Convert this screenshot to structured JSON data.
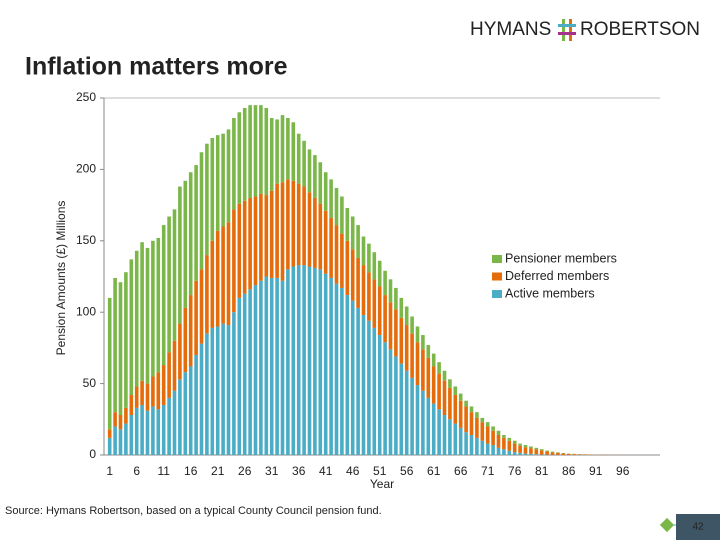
{
  "logo": {
    "left": "HYMANS",
    "right": "ROBERTSON"
  },
  "source": "Source: Hymans Robertson, based on a typical County Council pension fund.",
  "page_number": "42",
  "chart_data": {
    "type": "stacked_bar",
    "title": "Inflation matters more",
    "y_label": "Pension Amounts (£) Millions",
    "x_label": "Year",
    "categories": [
      "1",
      null,
      null,
      null,
      null,
      "6",
      null,
      null,
      null,
      null,
      "11",
      null,
      null,
      null,
      null,
      "16",
      null,
      null,
      null,
      null,
      "21",
      null,
      null,
      null,
      null,
      "26",
      null,
      null,
      null,
      null,
      "31",
      null,
      null,
      null,
      null,
      "36",
      null,
      null,
      null,
      null,
      "41",
      null,
      null,
      null,
      null,
      "46",
      null,
      null,
      null,
      null,
      "51",
      null,
      null,
      null,
      null,
      "56",
      null,
      null,
      null,
      null,
      "61",
      null,
      null,
      null,
      null,
      "66",
      null,
      null,
      null,
      null,
      "71",
      null,
      null,
      null,
      null,
      "76",
      null,
      null,
      null,
      null,
      "81",
      null,
      null,
      null,
      null,
      "86",
      null,
      null,
      null,
      null,
      "91",
      null,
      null,
      null,
      null,
      "96",
      null,
      null,
      null,
      null
    ],
    "series": [
      {
        "name": "Pensioner members",
        "color": "#7ab648",
        "values": [
          92,
          94,
          93,
          95,
          95,
          95,
          97,
          95,
          95,
          94,
          98,
          95,
          92,
          96,
          89,
          86,
          81,
          82,
          78,
          72,
          67,
          65,
          65,
          64,
          64,
          65,
          65,
          64,
          62,
          61,
          51,
          45,
          47,
          43,
          41,
          35,
          32,
          30,
          30,
          29,
          27,
          27,
          26,
          26,
          23,
          23,
          23,
          20,
          20,
          19,
          18,
          17,
          16,
          15,
          14,
          13,
          12,
          11,
          10,
          9,
          9,
          8,
          7,
          6,
          6,
          5,
          4,
          4,
          4,
          3,
          3,
          3,
          3,
          2,
          2,
          2,
          1.5,
          1.5,
          1.2,
          1,
          0.8,
          0.6,
          0.5,
          0.4,
          0.3,
          0.2,
          0.2,
          0.1,
          0.1,
          0.1,
          0.1,
          0,
          0,
          0,
          0,
          0,
          0,
          0,
          0,
          0
        ]
      },
      {
        "name": "Deferred members",
        "color": "#e46c0a",
        "values": [
          6,
          10,
          10,
          11,
          14,
          15,
          17,
          19,
          21,
          26,
          28,
          32,
          35,
          39,
          45,
          50,
          52,
          52,
          55,
          61,
          67,
          68,
          72,
          72,
          66,
          65,
          64,
          62,
          61,
          57,
          61,
          66,
          69,
          63,
          60,
          57,
          55,
          52,
          49,
          46,
          44,
          42,
          41,
          38,
          38,
          36,
          35,
          35,
          34,
          34,
          34,
          33,
          33,
          33,
          32,
          32,
          31,
          30,
          29,
          28,
          26,
          25,
          24,
          22,
          20,
          19,
          18,
          16,
          14,
          13,
          12,
          10,
          9,
          8,
          7,
          6,
          5,
          4.5,
          4,
          3.5,
          3,
          2.3,
          1.8,
          1.4,
          1.1,
          0.8,
          0.6,
          0.5,
          0.4,
          0.3,
          0.2,
          0.2,
          0.1,
          0.1,
          0.1,
          0,
          0,
          0,
          0,
          0
        ]
      },
      {
        "name": "Active members",
        "color": "#4bacc6",
        "values": [
          12,
          20,
          18,
          22,
          28,
          33,
          35,
          31,
          34,
          32,
          35,
          40,
          45,
          53,
          58,
          62,
          70,
          78,
          85,
          89,
          90,
          92,
          91,
          100,
          110,
          113,
          116,
          119,
          122,
          125,
          124,
          124,
          122,
          130,
          132,
          133,
          133,
          132,
          131,
          130,
          127,
          124,
          120,
          117,
          112,
          108,
          103,
          98,
          94,
          89,
          84,
          79,
          74,
          69,
          64,
          59,
          54,
          49,
          45,
          40,
          36,
          32,
          28,
          25,
          22,
          19,
          16,
          14,
          12,
          10,
          8,
          7,
          5,
          4,
          3,
          2,
          1.5,
          1,
          0.8,
          0.5,
          0.3,
          0.2,
          0.1,
          0.1,
          0,
          0,
          0,
          0,
          0,
          0,
          0,
          0,
          0,
          0,
          0,
          0,
          0,
          0,
          0,
          0
        ]
      }
    ],
    "ylim": [
      0,
      250
    ],
    "yticks": [
      0,
      50,
      100,
      150,
      200,
      250
    ],
    "grid": false,
    "legend": "right"
  }
}
